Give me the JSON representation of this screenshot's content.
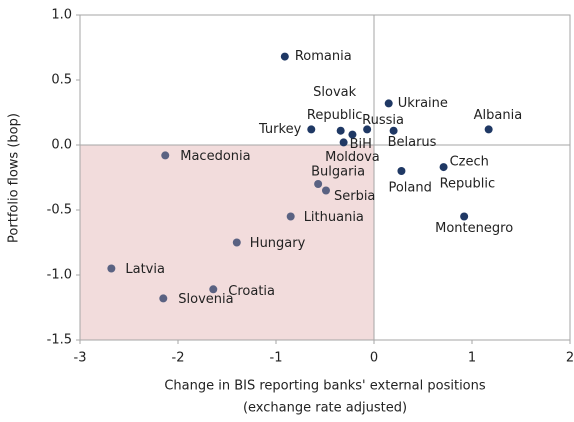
{
  "chart_data": {
    "type": "scatter",
    "xlabel": [
      "Change in BIS reporting banks' external positions",
      "(exchange rate adjusted)"
    ],
    "ylabel": "Portfolio flows (bop)",
    "xlim": [
      -3,
      2
    ],
    "xticks": [
      -3,
      -2,
      -1,
      0,
      1,
      2
    ],
    "ylim": [
      -1.5,
      1.0
    ],
    "yticks": [
      {
        "value": 1.0,
        "label": "1.0"
      },
      0.5,
      {
        "value": 0.0,
        "label": "0.0"
      },
      -0.5,
      {
        "value": -1.0,
        "label": "-1.0"
      },
      -1.5
    ],
    "shaded_region": {
      "xlim": [
        -3,
        0
      ],
      "ylim": [
        -1.5,
        0
      ],
      "color": "#f2dcdc"
    },
    "points": [
      {
        "label": [
          "Romania"
        ],
        "x": -0.91,
        "y": 0.68,
        "color": "#1f3864"
      },
      {
        "label": [
          "Ukraine"
        ],
        "x": 0.15,
        "y": 0.32,
        "color": "#1f3864"
      },
      {
        "label": [
          "Albania"
        ],
        "x": 1.17,
        "y": 0.12,
        "color": "#1f3864"
      },
      {
        "label": [
          "Turkey"
        ],
        "x": -0.64,
        "y": 0.12,
        "color": "#1f3864"
      },
      {
        "label": [
          "Slovak",
          "Republic"
        ],
        "x": -0.34,
        "y": 0.11,
        "color": "#1f3864"
      },
      {
        "label": [
          "Russia"
        ],
        "x": -0.07,
        "y": 0.12,
        "color": "#1f3864"
      },
      {
        "label": [
          "Belarus"
        ],
        "x": 0.2,
        "y": 0.11,
        "color": "#1f3864"
      },
      {
        "label": [
          "BiH"
        ],
        "x": -0.31,
        "y": 0.02,
        "color": "#1f3864"
      },
      {
        "label": [
          "Moldova"
        ],
        "x": -0.22,
        "y": 0.08,
        "color": "#1f3864"
      },
      {
        "label": [
          "Czech",
          "Republic"
        ],
        "x": 0.71,
        "y": -0.17,
        "color": "#1f3864"
      },
      {
        "label": [
          "Poland"
        ],
        "x": 0.28,
        "y": -0.2,
        "color": "#1f3864"
      },
      {
        "label": [
          "Montenegro"
        ],
        "x": 0.92,
        "y": -0.55,
        "color": "#1f3864"
      },
      {
        "label": [
          "Macedonia"
        ],
        "x": -2.13,
        "y": -0.08,
        "color": "#5a6282"
      },
      {
        "label": [
          "Bulgaria"
        ],
        "x": -0.57,
        "y": -0.3,
        "color": "#5a6282"
      },
      {
        "label": [
          "Serbia"
        ],
        "x": -0.49,
        "y": -0.35,
        "color": "#5a6282"
      },
      {
        "label": [
          "Lithuania"
        ],
        "x": -0.85,
        "y": -0.55,
        "color": "#5a6282"
      },
      {
        "label": [
          "Hungary"
        ],
        "x": -1.4,
        "y": -0.75,
        "color": "#5a6282"
      },
      {
        "label": [
          "Latvia"
        ],
        "x": -2.68,
        "y": -0.95,
        "color": "#5a6282"
      },
      {
        "label": [
          "Croatia"
        ],
        "x": -1.64,
        "y": -1.11,
        "color": "#5a6282"
      },
      {
        "label": [
          "Slovenia"
        ],
        "x": -2.15,
        "y": -1.18,
        "color": "#5a6282"
      }
    ]
  }
}
